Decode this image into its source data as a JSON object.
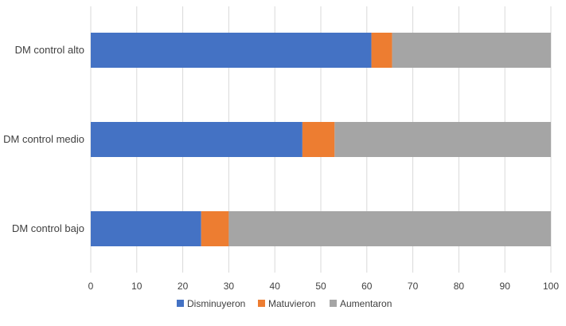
{
  "chart_data": {
    "type": "bar",
    "orientation": "horizontal",
    "stacked": true,
    "categories": [
      "DM control alto",
      "DM control medio",
      "DM control bajo"
    ],
    "series": [
      {
        "name": "Disminuyeron",
        "values": [
          61,
          46,
          24
        ],
        "color": "#4472C4"
      },
      {
        "name": "Matuvieron",
        "values": [
          4.5,
          7,
          6
        ],
        "color": "#ED7D31"
      },
      {
        "name": "Aumentaron",
        "values": [
          34.5,
          47,
          70
        ],
        "color": "#A5A5A5"
      }
    ],
    "xlim": [
      0,
      100
    ],
    "x_ticks": [
      "0",
      "10",
      "20",
      "30",
      "40",
      "50",
      "60",
      "70",
      "80",
      "90",
      "100"
    ],
    "grid": true,
    "legend_position": "bottom",
    "title": "",
    "xlabel": "",
    "ylabel": ""
  }
}
